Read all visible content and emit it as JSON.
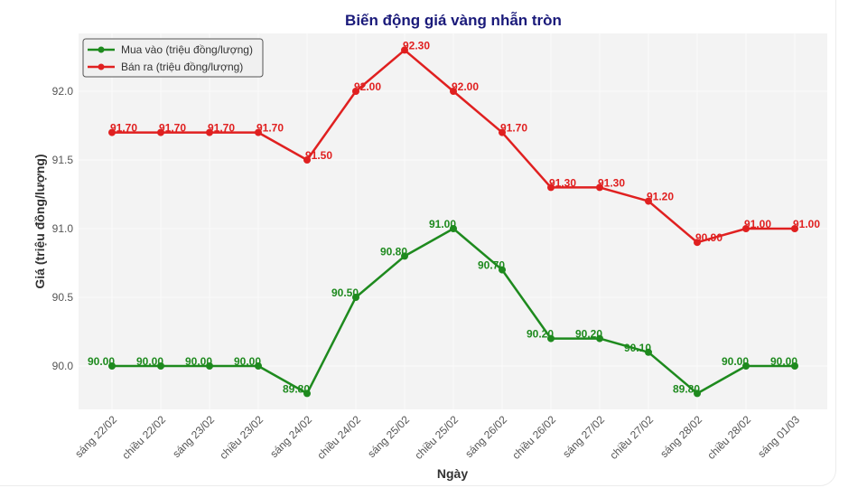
{
  "chart_data": {
    "type": "line",
    "title": "Biến động giá vàng nhẫn tròn",
    "xlabel": "Ngày",
    "ylabel": "Giá (triệu đồng/lượng)",
    "ylim": [
      89.67,
      92.42
    ],
    "yticks": [
      "90.0",
      "90.5",
      "91.0",
      "91.5",
      "92.0"
    ],
    "grid": true,
    "legend_position": "upper left",
    "categories": [
      "sáng 22/02",
      "chiều 22/02",
      "sáng 23/02",
      "chiều 23/02",
      "sáng 24/02",
      "chiều 24/02",
      "sáng 25/02",
      "chiều 25/02",
      "sáng 26/02",
      "chiều 26/02",
      "sáng 27/02",
      "chiều 27/02",
      "sáng 28/02",
      "chiều 28/02",
      "sáng 01/03"
    ],
    "series": [
      {
        "name": "Mua vào (triệu đồng/lượng)",
        "color": "#1e8a1e",
        "values": [
          90.0,
          90.0,
          90.0,
          90.0,
          89.8,
          90.5,
          90.8,
          91.0,
          90.7,
          90.2,
          90.2,
          90.1,
          89.8,
          90.0,
          90.0
        ]
      },
      {
        "name": "Bán ra (triệu đồng/lượng)",
        "color": "#e02020",
        "values": [
          91.7,
          91.7,
          91.7,
          91.7,
          91.5,
          92.0,
          92.3,
          92.0,
          91.7,
          91.3,
          91.3,
          91.2,
          90.9,
          91.0,
          91.0
        ]
      }
    ]
  },
  "layout": {
    "plot_bg": "#f3f3f3",
    "grid_color": "#fafafa"
  }
}
